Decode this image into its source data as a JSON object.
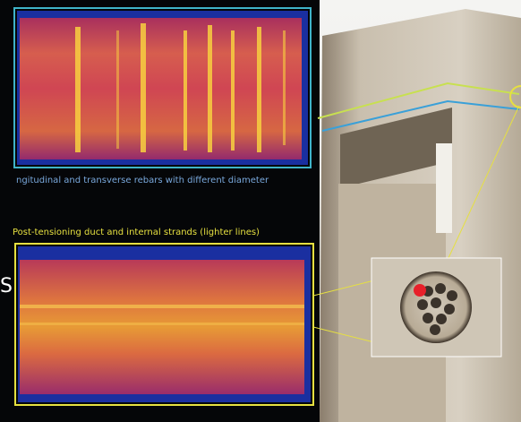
{
  "captions": {
    "top": "ngitudinal and transverse rebars with different diameter",
    "bottom": "Post-tensioning duct and internal strands (lighter lines)"
  },
  "side_letter": "S"
}
